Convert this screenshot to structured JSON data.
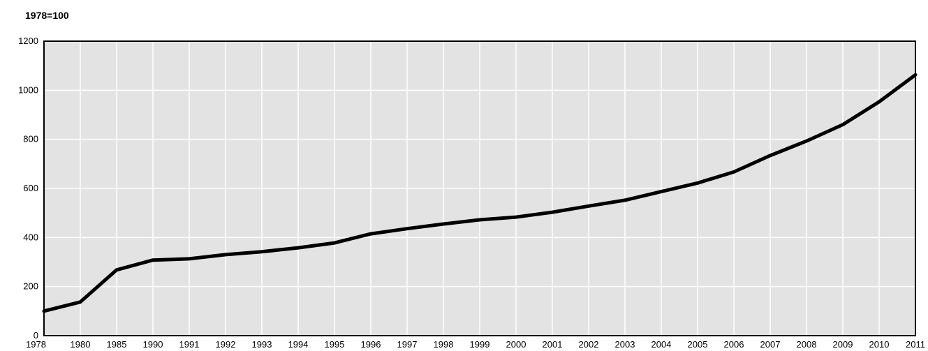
{
  "chart_data": {
    "type": "line",
    "unit_label": "1978=100",
    "categories": [
      "1978",
      "1980",
      "1985",
      "1990",
      "1991",
      "1992",
      "1993",
      "1994",
      "1995",
      "1996",
      "1997",
      "1998",
      "1999",
      "2000",
      "2001",
      "2002",
      "2003",
      "2004",
      "2005",
      "2006",
      "2007",
      "2008",
      "2009",
      "2010",
      "2011"
    ],
    "series": [
      {
        "values": [
          100,
          137,
          268,
          308,
          313,
          330,
          342,
          358,
          378,
          415,
          436,
          455,
          472,
          483,
          503,
          528,
          552,
          587,
          622,
          667,
          734,
          793,
          860,
          953,
          1063
        ]
      }
    ],
    "yticks": [
      0,
      200,
      400,
      600,
      800,
      1000,
      1200
    ],
    "ylim": [
      0,
      1200
    ],
    "grid": true,
    "plot_background": "#e3e3e3",
    "grid_color": "#ffffff",
    "line_color": "#000000"
  }
}
